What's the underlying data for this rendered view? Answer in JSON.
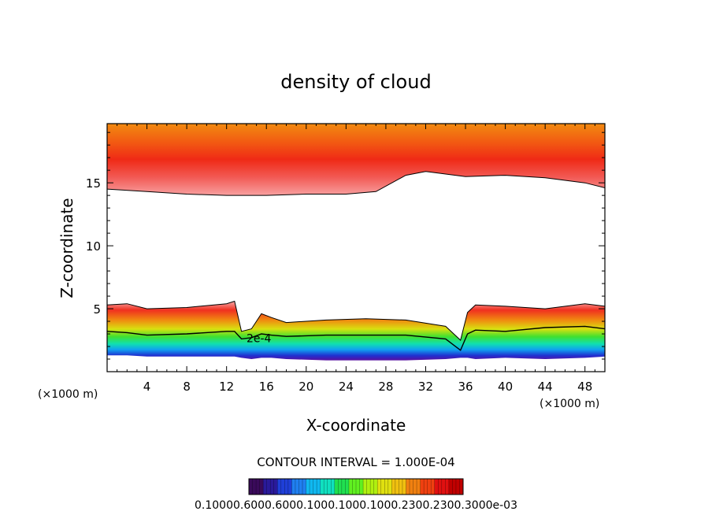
{
  "chart_data": {
    "type": "heatmap",
    "title": "density of cloud",
    "xlabel": "X-coordinate",
    "ylabel": "Z-coordinate",
    "x_unit": "(×1000 m)",
    "y_unit": "(×1000 m)",
    "xlim": [
      0,
      50
    ],
    "ylim": [
      0,
      19.7
    ],
    "x_ticks": [
      4,
      8,
      12,
      16,
      20,
      24,
      28,
      32,
      36,
      40,
      44,
      48
    ],
    "y_ticks": [
      5,
      10,
      15
    ],
    "contour_interval_text": "CONTOUR INTERVAL = 1.000E-04",
    "contour_label": "2e-4",
    "colorbar_labels_text": "0.10000.6000.6000.1000.1000.1000.2300.2300.3000e-03",
    "colorbar_colors": [
      "#3a0a5a",
      "#2a1a9a",
      "#1f3fd8",
      "#1f7ff0",
      "#10b8f0",
      "#10e0c0",
      "#20e050",
      "#60f020",
      "#b0f010",
      "#e0e010",
      "#f0c010",
      "#f08010",
      "#f04010",
      "#e01010",
      "#c00000"
    ],
    "upper_layer": {
      "x": [
        0,
        4,
        8,
        12,
        16,
        20,
        24,
        27,
        30,
        32,
        36,
        40,
        44,
        48,
        50
      ],
      "base_z": [
        14.5,
        14.3,
        14.1,
        14.0,
        14.0,
        14.1,
        14.1,
        14.3,
        15.6,
        15.9,
        15.5,
        15.6,
        15.4,
        15.0,
        14.6
      ]
    },
    "lower_layer": {
      "x": [
        0,
        2,
        4,
        8,
        12,
        12.8,
        13.5,
        14.5,
        15.5,
        16.5,
        18,
        22,
        26,
        30,
        34,
        35.5,
        36.2,
        37,
        40,
        44,
        48,
        50
      ],
      "top_z": [
        5.3,
        5.4,
        5.0,
        5.1,
        5.4,
        5.6,
        3.2,
        3.4,
        4.6,
        4.3,
        3.9,
        4.1,
        4.2,
        4.1,
        3.6,
        2.5,
        4.7,
        5.3,
        5.2,
        5.0,
        5.4,
        5.2
      ],
      "contour_2e4_z": [
        3.2,
        3.1,
        2.9,
        3.0,
        3.2,
        3.2,
        2.6,
        2.7,
        3.0,
        2.9,
        2.8,
        2.9,
        2.9,
        2.9,
        2.6,
        1.7,
        3.0,
        3.3,
        3.2,
        3.5,
        3.6,
        3.4
      ],
      "base_z": [
        1.3,
        1.3,
        1.2,
        1.2,
        1.2,
        1.2,
        1.1,
        1.0,
        1.1,
        1.1,
        1.0,
        0.9,
        0.9,
        0.9,
        1.0,
        1.1,
        1.1,
        1.0,
        1.1,
        1.0,
        1.1,
        1.2
      ]
    }
  }
}
